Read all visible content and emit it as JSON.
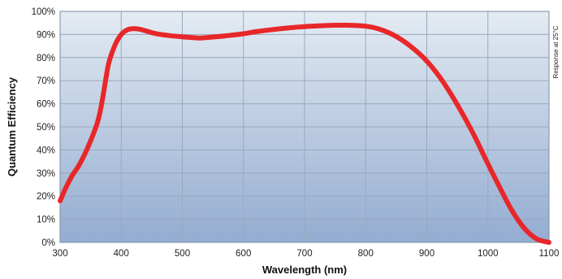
{
  "chart_data": {
    "type": "line",
    "xlabel": "Wavelength (nm)",
    "ylabel": "Quantum Efficiency",
    "annotation": "Response at 25°C",
    "xlim": [
      300,
      1100
    ],
    "ylim": [
      0,
      100
    ],
    "x_ticks": [
      "300",
      "400",
      "500",
      "600",
      "700",
      "800",
      "900",
      "1000",
      "1100"
    ],
    "y_ticks": [
      "0%",
      "10%",
      "20%",
      "30%",
      "40%",
      "50%",
      "60%",
      "70%",
      "80%",
      "90%",
      "100%"
    ],
    "grid": true,
    "series_color": "#e8272a",
    "background_top": "#e4ebf3",
    "background_bottom": "#93acd0",
    "series": [
      {
        "x": [
          300,
          310,
          320,
          330,
          340,
          350,
          360,
          365,
          370,
          375,
          380,
          390,
          400,
          410,
          420,
          430,
          440,
          450,
          460,
          480,
          500,
          520,
          530,
          550,
          570,
          600,
          620,
          650,
          680,
          700,
          720,
          750,
          770,
          800,
          820,
          840,
          860,
          880,
          900,
          920,
          940,
          960,
          980,
          1000,
          1020,
          1040,
          1060,
          1080,
          1100
        ],
        "y": [
          18,
          24,
          29,
          33,
          38,
          44,
          51,
          56,
          63,
          71,
          78,
          85.5,
          90,
          92,
          92.5,
          92.3,
          91.6,
          90.8,
          90.2,
          89.5,
          89,
          88.6,
          88.5,
          88.9,
          89.4,
          90.3,
          91.2,
          92.2,
          93,
          93.4,
          93.7,
          94,
          94,
          93.6,
          92.5,
          90.5,
          87.5,
          83.5,
          78.5,
          72,
          64,
          55,
          45,
          34,
          23.5,
          13.5,
          6,
          1.5,
          0
        ]
      }
    ]
  }
}
